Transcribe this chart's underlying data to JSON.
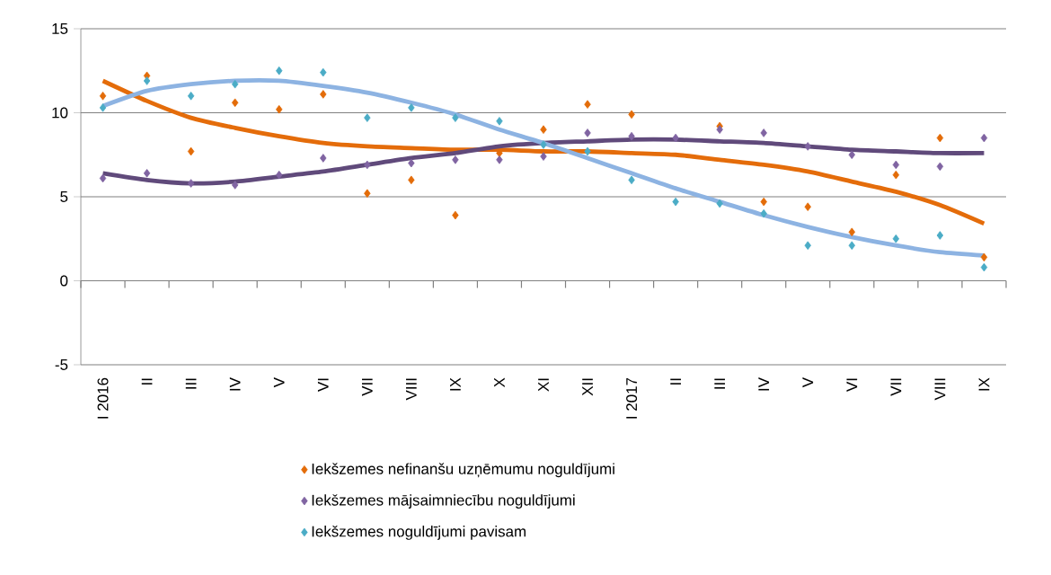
{
  "chart_data": {
    "type": "scatter",
    "categories": [
      "I 2016",
      "II",
      "III",
      "IV",
      "V",
      "VI",
      "VII",
      "VIII",
      "IX",
      "X",
      "XI",
      "XII",
      "I 2017",
      "II",
      "III",
      "IV",
      "V",
      "VI",
      "VII",
      "VIII",
      "IX"
    ],
    "series": [
      {
        "name": "Iekšzemes nefinanšu uzņēmumu  noguldījumi",
        "color": "#e36c09",
        "marker": "diamond",
        "values": [
          11.0,
          12.2,
          7.7,
          10.6,
          10.2,
          11.1,
          5.2,
          6.0,
          3.9,
          7.6,
          9.0,
          10.5,
          9.9,
          null,
          9.2,
          4.7,
          4.4,
          2.9,
          6.3,
          8.5,
          1.4
        ]
      },
      {
        "name": "Iekšzemes mājsaimniecību  noguldījumi",
        "color": "#8064a2",
        "marker": "diamond",
        "values": [
          6.1,
          6.4,
          5.8,
          5.7,
          6.3,
          7.3,
          6.9,
          7.0,
          7.2,
          7.2,
          7.4,
          8.8,
          8.6,
          8.5,
          9.0,
          8.8,
          8.0,
          7.5,
          6.9,
          6.8,
          8.5
        ]
      },
      {
        "name": "Iekšzemes noguldījumi  pavisam",
        "color": "#4bacc6",
        "marker": "diamond",
        "values": [
          10.3,
          11.9,
          11.0,
          11.7,
          12.5,
          12.4,
          9.7,
          10.3,
          9.7,
          9.5,
          8.1,
          7.7,
          6.0,
          4.7,
          4.6,
          4.0,
          2.1,
          2.1,
          2.5,
          2.7,
          0.8
        ]
      },
      {
        "color": "#e46c0a",
        "type": "line",
        "marker": "none",
        "values": [
          11.9,
          10.7,
          9.7,
          9.1,
          8.6,
          8.2,
          8.0,
          7.9,
          7.8,
          7.8,
          7.7,
          7.7,
          7.6,
          7.5,
          7.2,
          6.9,
          6.5,
          5.9,
          5.3,
          4.5,
          3.4
        ]
      },
      {
        "color": "#604a7b",
        "type": "line",
        "marker": "none",
        "values": [
          6.4,
          6.0,
          5.8,
          5.9,
          6.2,
          6.5,
          6.9,
          7.3,
          7.6,
          8.0,
          8.2,
          8.3,
          8.4,
          8.4,
          8.3,
          8.2,
          8.0,
          7.8,
          7.7,
          7.6,
          7.6
        ]
      },
      {
        "color": "#8db3e2",
        "type": "line",
        "marker": "none",
        "values": [
          10.4,
          11.3,
          11.7,
          11.9,
          11.9,
          11.6,
          11.2,
          10.6,
          9.9,
          9.0,
          8.2,
          7.3,
          6.4,
          5.5,
          4.7,
          3.9,
          3.2,
          2.6,
          2.1,
          1.7,
          1.5
        ]
      }
    ],
    "ylim": [
      -5,
      15
    ],
    "yticks": [
      -5,
      0,
      5,
      10,
      15
    ],
    "grid": "y",
    "legend": "bottom"
  }
}
